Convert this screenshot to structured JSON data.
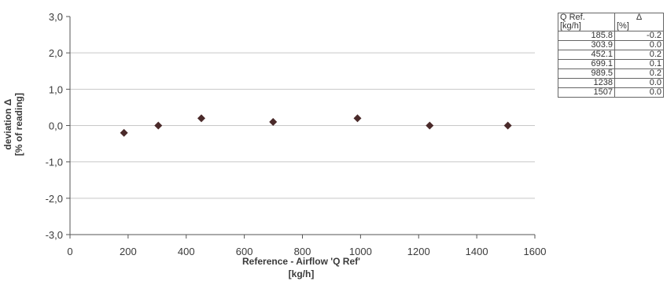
{
  "chart_data": {
    "type": "scatter",
    "title": "",
    "xlabel": "Reference - Airflow 'Q Ref'",
    "xlabel_unit": "[kg/h]",
    "ylabel": "deviation Δ",
    "ylabel_unit": "[% of reading]",
    "xlim": [
      0,
      1600
    ],
    "ylim": [
      -3.0,
      3.0
    ],
    "x_ticks": [
      "0",
      "200",
      "400",
      "600",
      "800",
      "1000",
      "1200",
      "1400",
      "1600"
    ],
    "y_ticks": [
      "3,0",
      "2,0",
      "1,0",
      "0,0",
      "-1,0",
      "-2,0",
      "-3,0"
    ],
    "grid": "horizontal",
    "marker": "diamond",
    "marker_color": "#4a2a2a",
    "points": [
      {
        "x": 185.8,
        "y": -0.2
      },
      {
        "x": 303.9,
        "y": 0.0
      },
      {
        "x": 452.1,
        "y": 0.2
      },
      {
        "x": 699.1,
        "y": 0.1
      },
      {
        "x": 989.5,
        "y": 0.2
      },
      {
        "x": 1238,
        "y": 0.0
      },
      {
        "x": 1507,
        "y": 0.0
      }
    ]
  },
  "table": {
    "headers": [
      {
        "name": "Q Ref.",
        "unit": "[kg/h]"
      },
      {
        "name": "Δ",
        "unit": "[%]"
      }
    ],
    "rows": [
      [
        "185.8",
        "-0.2"
      ],
      [
        "303.9",
        "0.0"
      ],
      [
        "452.1",
        "0.2"
      ],
      [
        "699.1",
        "0.1"
      ],
      [
        "989.5",
        "0.2"
      ],
      [
        "1238",
        "0.0"
      ],
      [
        "1507",
        "0.0"
      ]
    ]
  }
}
